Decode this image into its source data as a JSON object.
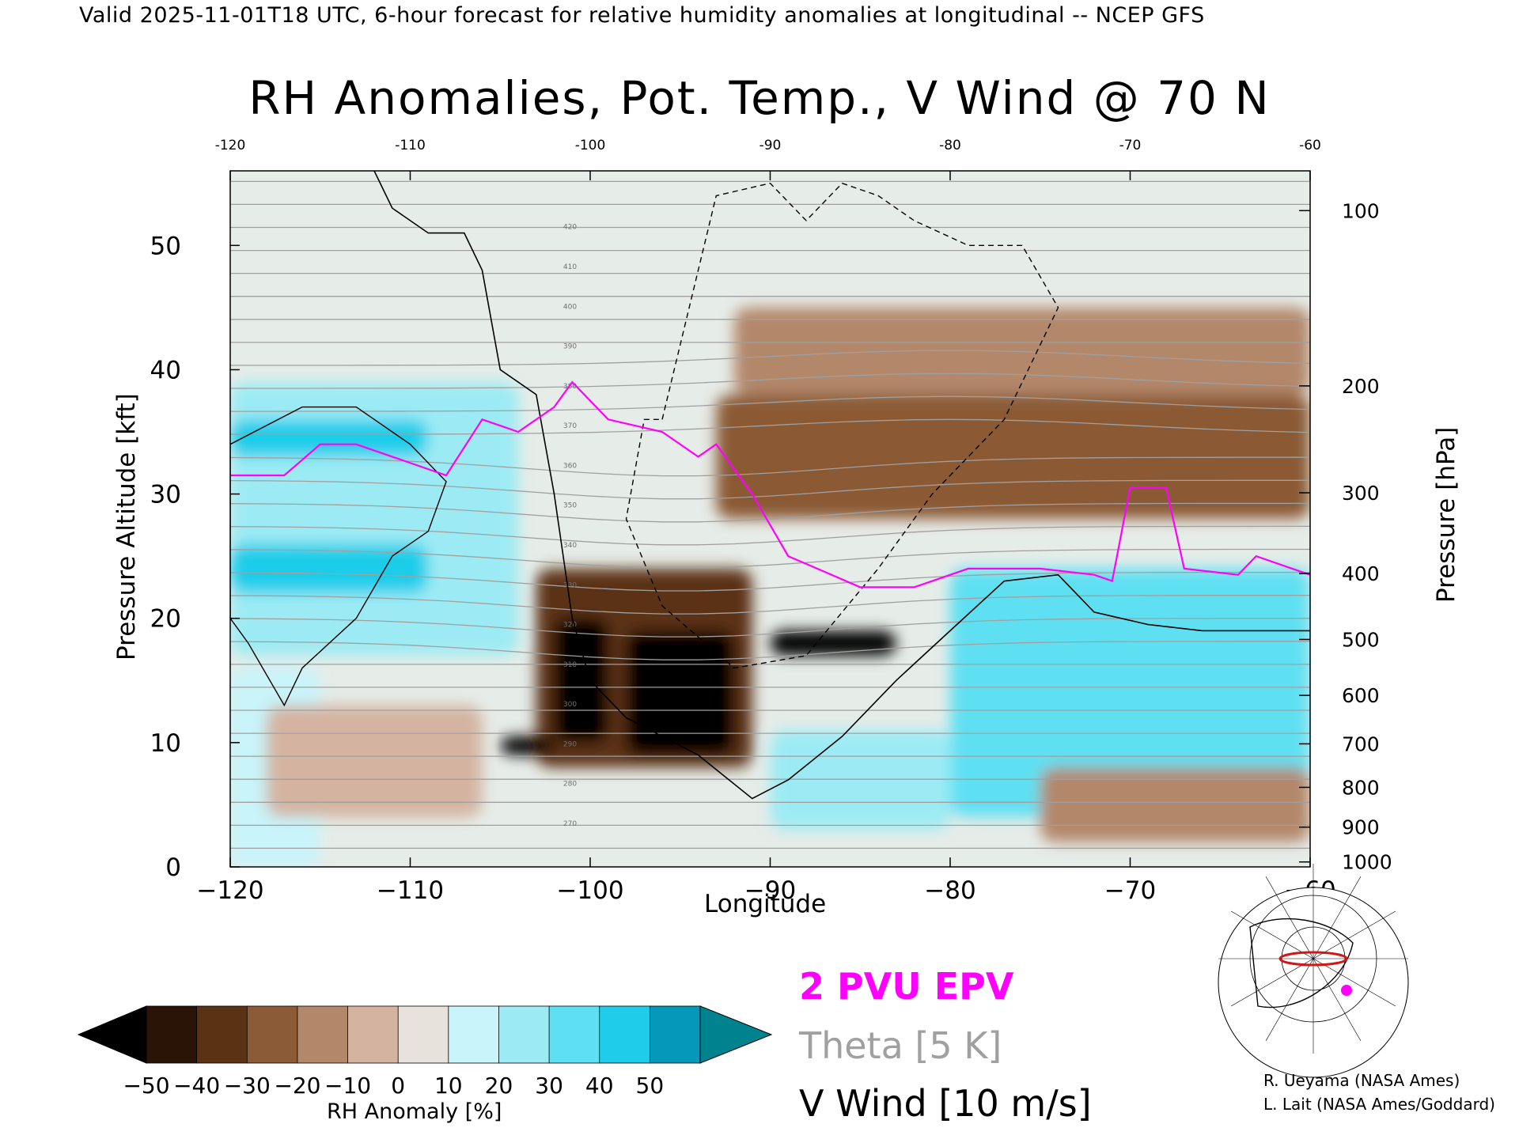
{
  "header": "Valid 2025-11-01T18 UTC, 6-hour forecast for relative humidity anomalies at longitudinal -- NCEP GFS",
  "colors": {
    "epv": "#ff00ff",
    "theta": "#a0a0a0",
    "vwind": "#000000",
    "rh_neg_max": "#000000",
    "rh_pos_max": "#00838f",
    "rh_neutral": "#e6ece8"
  },
  "chart_data": {
    "type": "heatmap",
    "title": "RH Anomalies, Pot. Temp., V Wind @ 70 N",
    "xlabel": "Longitude",
    "ylabel": "Pressure Altitude [kft]",
    "y2label": "Pressure [hPa]",
    "xlim": [
      -120,
      -60
    ],
    "ylim": [
      0,
      56
    ],
    "x_ticks": [
      "−120",
      "−110",
      "−100",
      "−90",
      "−80",
      "−70",
      "−60"
    ],
    "x_top_ticks": [
      "-120",
      "-110",
      "-100",
      "-90",
      "-80",
      "-70",
      "-60"
    ],
    "y_ticks": [
      "0",
      "10",
      "20",
      "30",
      "40",
      "50"
    ],
    "pressure_ticks": [
      {
        "label": "100",
        "kft": 52.8
      },
      {
        "label": "200",
        "kft": 38.7
      },
      {
        "label": "300",
        "kft": 30.1
      },
      {
        "label": "400",
        "kft": 23.6
      },
      {
        "label": "500",
        "kft": 18.3
      },
      {
        "label": "600",
        "kft": 13.8
      },
      {
        "label": "700",
        "kft": 9.9
      },
      {
        "label": "800",
        "kft": 6.4
      },
      {
        "label": "900",
        "kft": 3.2
      },
      {
        "label": "1000",
        "kft": 0.4
      }
    ],
    "colorbar": {
      "label": "RH Anomaly [%]",
      "ticks": [
        "−50",
        "−40",
        "−30",
        "−20",
        "−10",
        "0",
        "10",
        "20",
        "30",
        "40",
        "50"
      ],
      "bounds": [
        -50,
        50
      ],
      "colors": [
        "#2a1406",
        "#5c3214",
        "#8b5a36",
        "#b3876a",
        "#d4b4a0",
        "#e8e2dc",
        "#c8f4fa",
        "#9cebf4",
        "#5ee0f2",
        "#1fcdea",
        "#0598bb"
      ],
      "under_color": "#000000",
      "over_color": "#00838f"
    },
    "rh_regions": [
      {
        "value": 25,
        "lon": [
          -120,
          -104
        ],
        "kft": [
          17,
          39
        ]
      },
      {
        "value": 40,
        "lon": [
          -120,
          -109
        ],
        "kft": [
          33,
          36
        ]
      },
      {
        "value": 40,
        "lon": [
          -120,
          -109
        ],
        "kft": [
          22,
          26
        ]
      },
      {
        "value": 10,
        "lon": [
          -120,
          -115
        ],
        "kft": [
          0,
          16
        ]
      },
      {
        "value": -10,
        "lon": [
          -118,
          -106
        ],
        "kft": [
          4,
          13
        ]
      },
      {
        "value": -40,
        "lon": [
          -103,
          -91
        ],
        "kft": [
          8,
          24
        ]
      },
      {
        "value": -55,
        "lon": [
          -102,
          -99
        ],
        "kft": [
          10,
          20
        ]
      },
      {
        "value": -55,
        "lon": [
          -98,
          -92
        ],
        "kft": [
          9,
          19
        ]
      },
      {
        "value": -55,
        "lon": [
          -105,
          -102
        ],
        "kft": [
          9,
          10.5
        ]
      },
      {
        "value": -55,
        "lon": [
          -90,
          -83
        ],
        "kft": [
          17,
          19
        ]
      },
      {
        "value": -30,
        "lon": [
          -93,
          -60
        ],
        "kft": [
          28,
          38
        ]
      },
      {
        "value": -15,
        "lon": [
          -92,
          -60
        ],
        "kft": [
          38,
          45
        ]
      },
      {
        "value": 30,
        "lon": [
          -80,
          -60
        ],
        "kft": [
          4,
          24
        ]
      },
      {
        "value": 20,
        "lon": [
          -90,
          -80
        ],
        "kft": [
          3,
          11
        ]
      },
      {
        "value": -15,
        "lon": [
          -75,
          -60
        ],
        "kft": [
          2,
          8
        ]
      }
    ],
    "epv_2pvu": [
      [
        -120,
        31.5
      ],
      [
        -117,
        31.5
      ],
      [
        -115,
        34
      ],
      [
        -113,
        34
      ],
      [
        -111,
        33
      ],
      [
        -108,
        31.5
      ],
      [
        -106,
        36
      ],
      [
        -104,
        35
      ],
      [
        -102,
        37
      ],
      [
        -101,
        39
      ],
      [
        -99,
        36
      ],
      [
        -96,
        35
      ],
      [
        -94,
        33
      ],
      [
        -93,
        34
      ],
      [
        -91,
        30
      ],
      [
        -89,
        25
      ],
      [
        -85,
        22.5
      ],
      [
        -82,
        22.5
      ],
      [
        -79,
        24
      ],
      [
        -75,
        24
      ],
      [
        -72,
        23.5
      ],
      [
        -71,
        23
      ],
      [
        -70,
        30.5
      ],
      [
        -68,
        30.5
      ],
      [
        -67,
        24
      ],
      [
        -64,
        23.5
      ],
      [
        -63,
        25
      ],
      [
        -61,
        24
      ],
      [
        -60,
        23.5
      ]
    ],
    "theta_levels": [
      "420",
      "410",
      "400",
      "390",
      "380",
      "370",
      "360",
      "350",
      "340",
      "330",
      "320",
      "310",
      "300",
      "290",
      "280",
      "270"
    ],
    "vwind_zero": [
      [
        -112,
        56
      ],
      [
        -111,
        53
      ],
      [
        -109,
        51
      ],
      [
        -107,
        51
      ],
      [
        -106,
        48
      ],
      [
        -105,
        40
      ],
      [
        -103,
        38
      ],
      [
        -102,
        30
      ],
      [
        -101,
        20
      ],
      [
        -100,
        15
      ],
      [
        -98,
        12
      ],
      [
        -94,
        9
      ],
      [
        -91,
        5.5
      ],
      [
        -89,
        7
      ],
      [
        -86,
        10.5
      ],
      [
        -83,
        15
      ],
      [
        -80,
        19
      ],
      [
        -77,
        23
      ],
      [
        -74,
        23.5
      ],
      [
        -72,
        20.5
      ],
      [
        -69,
        19.5
      ],
      [
        -66,
        19
      ],
      [
        -63,
        19
      ],
      [
        -60,
        19
      ]
    ],
    "vwind_neg10": [
      [
        -96,
        36
      ],
      [
        -93,
        54
      ],
      [
        -90,
        55
      ],
      [
        -88,
        52
      ],
      [
        -86,
        55
      ],
      [
        -84,
        54
      ],
      [
        -82,
        52
      ],
      [
        -79,
        50
      ],
      [
        -76,
        50
      ],
      [
        -74,
        45
      ],
      [
        -77,
        36
      ],
      [
        -81,
        30
      ],
      [
        -84,
        24
      ],
      [
        -88,
        17
      ],
      [
        -92,
        16
      ],
      [
        -96,
        21
      ],
      [
        -98,
        28
      ],
      [
        -97,
        36
      ]
    ],
    "vwind_pos10": [
      [
        -120,
        34
      ],
      [
        -116,
        37
      ],
      [
        -113,
        37
      ],
      [
        -110,
        34
      ],
      [
        -108,
        31
      ],
      [
        -109,
        27
      ],
      [
        -111,
        25
      ],
      [
        -113,
        20
      ],
      [
        -116,
        16
      ],
      [
        -117,
        13
      ],
      [
        -119,
        18
      ],
      [
        -120,
        20
      ]
    ]
  },
  "legend": {
    "epv_label": "2 PVU EPV",
    "theta_label": "Theta [5 K]",
    "vwind_label": "V Wind [10 m/s]"
  },
  "credits": [
    "R. Ueyama (NASA Ames)",
    "L. Lait (NASA Ames/Goddard)"
  ]
}
